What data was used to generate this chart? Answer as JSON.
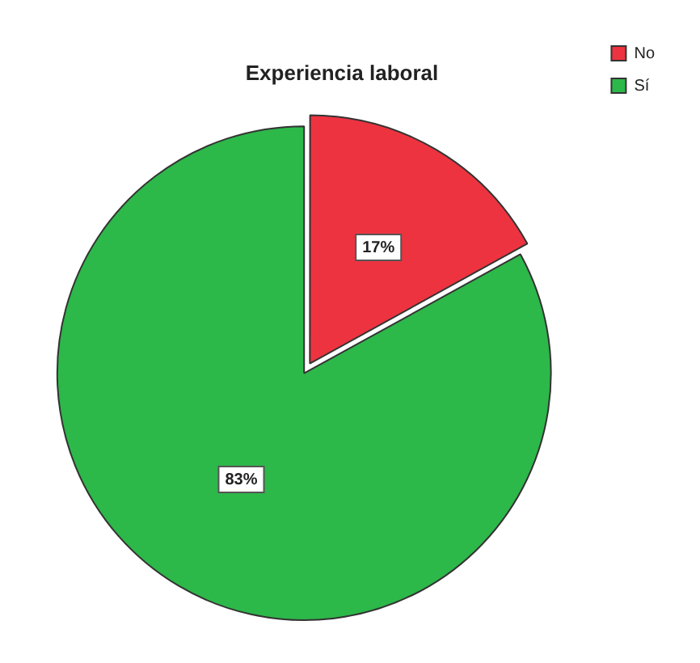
{
  "chart_data": {
    "type": "pie",
    "title": "Experiencia laboral",
    "categories": [
      "No",
      "Sí"
    ],
    "values": [
      17,
      83
    ],
    "colors": [
      "#ee3340",
      "#2db84a"
    ],
    "legend": "top right",
    "value_labels": [
      "17%",
      "83%"
    ]
  }
}
